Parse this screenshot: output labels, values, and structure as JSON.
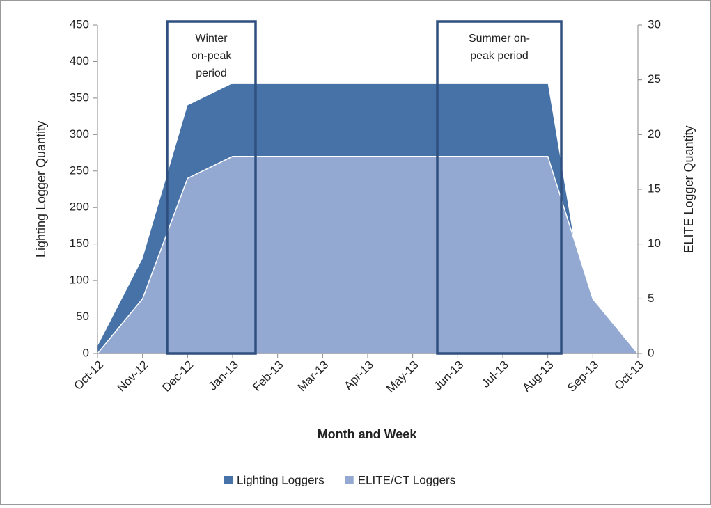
{
  "chart_data": {
    "type": "area",
    "x_label": "Month and Week",
    "y_label": "Lighting Logger Quantity",
    "y2_label": "ELITE Logger Quantity",
    "categories": [
      "Oct-12",
      "Nov-12",
      "Dec-12",
      "Jan-13",
      "Feb-13",
      "Mar-13",
      "Apr-13",
      "May-13",
      "Jun-13",
      "Jul-13",
      "Aug-13",
      "Sep-13",
      "Oct-13"
    ],
    "series": [
      {
        "name": "Lighting Loggers",
        "color": "#4672a8",
        "values": [
          10,
          130,
          340,
          370,
          370,
          370,
          370,
          370,
          370,
          370,
          370,
          0,
          0
        ]
      },
      {
        "name": "ELITE/CT Loggers",
        "color": "#94a9d1",
        "axis": "y2",
        "values": [
          0,
          5,
          16,
          18,
          18,
          18,
          18,
          18,
          18,
          18,
          18,
          5,
          0
        ]
      }
    ],
    "ylim": [
      0,
      450
    ],
    "yticks": [
      0,
      50,
      100,
      150,
      200,
      250,
      300,
      350,
      400,
      450
    ],
    "y2lim": [
      0,
      30
    ],
    "y2ticks": [
      0,
      5,
      10,
      15,
      20,
      25,
      30
    ],
    "annotations": [
      {
        "lines": [
          "Winter",
          "on-peak",
          "period"
        ]
      },
      {
        "lines": [
          "Summer on-",
          "peak period"
        ]
      }
    ],
    "legend": "bottom"
  }
}
